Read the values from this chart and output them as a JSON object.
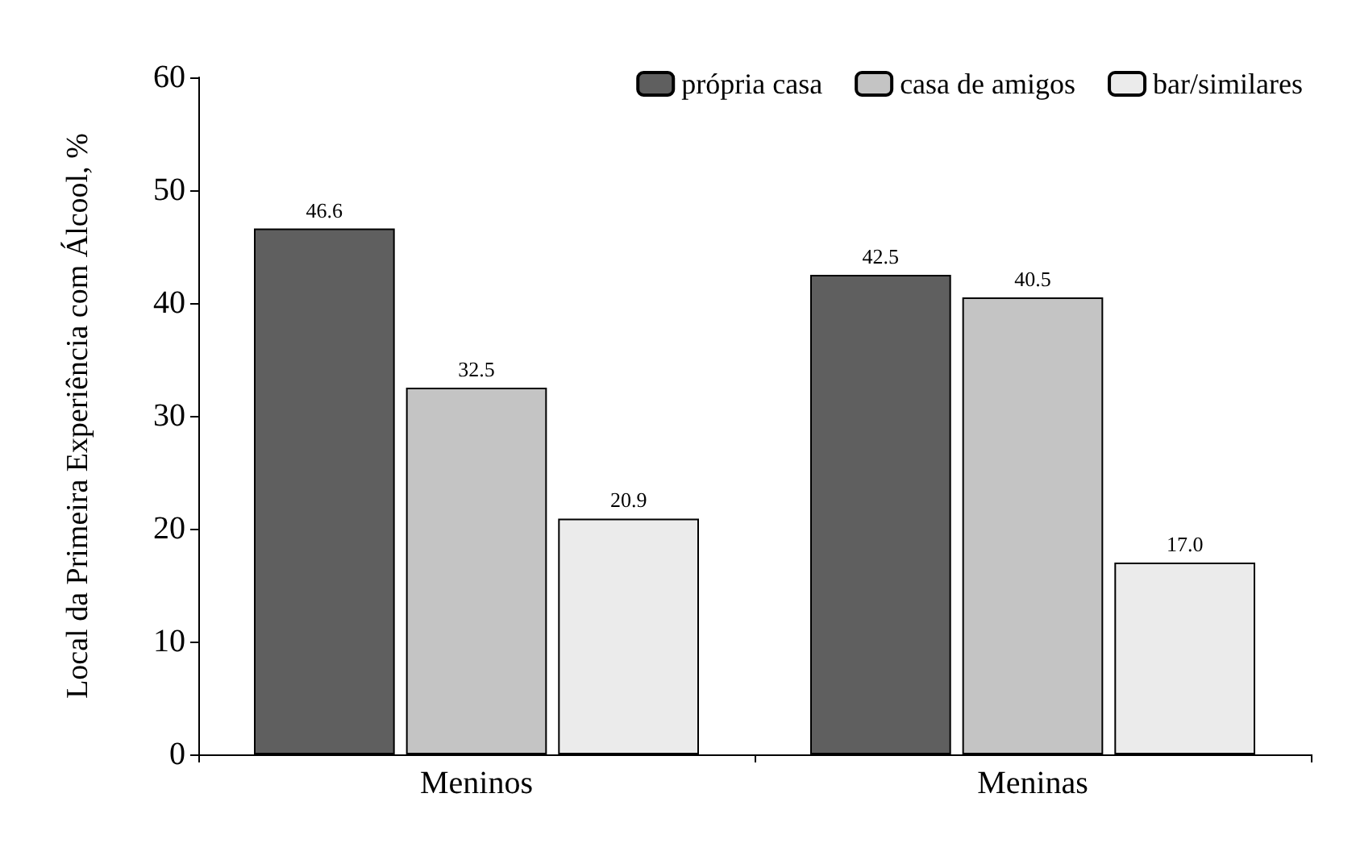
{
  "chart_data": {
    "type": "bar",
    "ylabel": "Local da Primeira Experiência com Álcool, %",
    "categories": [
      "Meninos",
      "Meninas"
    ],
    "series": [
      {
        "name": "própria casa",
        "color": "#5f5f5f",
        "values": [
          46.6,
          42.5
        ],
        "value_labels": [
          "46.6",
          "42.5"
        ]
      },
      {
        "name": "casa de amigos",
        "color": "#c4c4c4",
        "values": [
          32.5,
          40.5
        ],
        "value_labels": [
          "32.5",
          "40.5"
        ]
      },
      {
        "name": "bar/similares",
        "color": "#ebebeb",
        "values": [
          20.9,
          17.0
        ],
        "value_labels": [
          "20.9",
          "17.0"
        ]
      }
    ],
    "ylim": [
      0,
      60
    ],
    "yticks": [
      0,
      10,
      20,
      30,
      40,
      50,
      60
    ],
    "grid": false,
    "legend": "top right"
  }
}
